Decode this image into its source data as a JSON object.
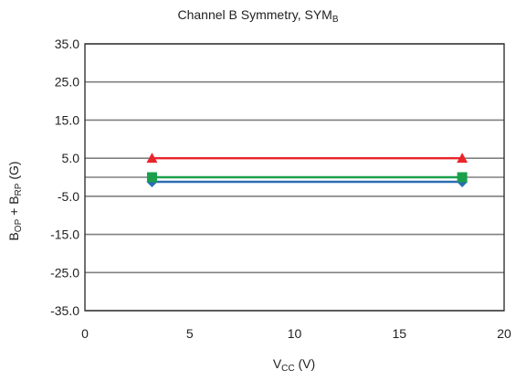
{
  "chart_data": {
    "type": "line",
    "title": {
      "main": "Channel B Symmetry, SYM",
      "sub": "B"
    },
    "xlabel": {
      "main": "V",
      "sub": "CC",
      "suffix": " (V)"
    },
    "ylabel": {
      "b1": "B",
      "sub1": "OP",
      "mid": " + B",
      "sub2": "RP",
      "suffix": " (G)"
    },
    "xlim": [
      0,
      20
    ],
    "ylim": [
      -35,
      35
    ],
    "x_ticks": [
      0,
      5,
      10,
      15,
      20
    ],
    "y_ticks": [
      35,
      25,
      15,
      5,
      -5,
      -15,
      -25,
      -35
    ],
    "y_tick_labels": [
      "35.0",
      "25.0",
      "15.0",
      "5.0",
      "-5.0",
      "-15.0",
      "-25.0",
      "-35.0"
    ],
    "grid": "horizontal",
    "series": [
      {
        "x": [
          3.2,
          18
        ],
        "y": [
          5,
          5
        ],
        "color": "#e8252b",
        "marker": "triangle"
      },
      {
        "x": [
          3.2,
          18
        ],
        "y": [
          0,
          0
        ],
        "color": "#1a9f4a",
        "marker": "square"
      },
      {
        "x": [
          3.2,
          18
        ],
        "y": [
          -1.2,
          -1.2
        ],
        "color": "#2a6db3",
        "marker": "diamond"
      }
    ]
  }
}
